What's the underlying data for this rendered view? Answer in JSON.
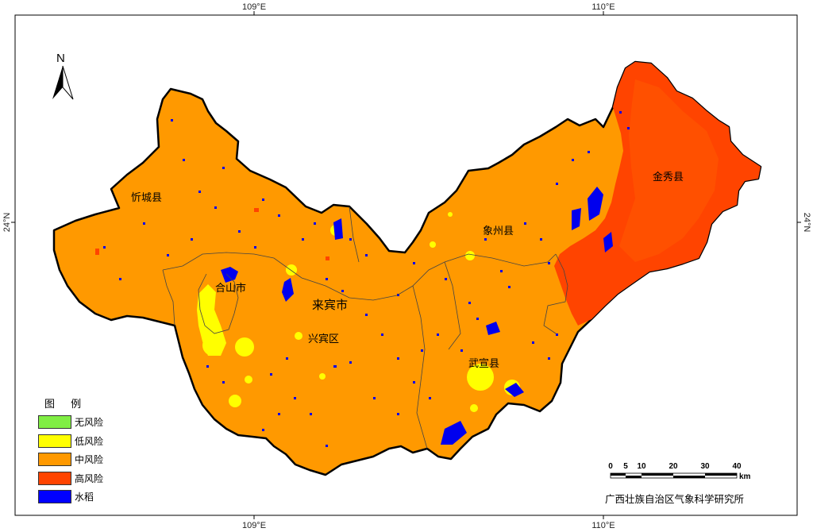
{
  "graticule": {
    "top_left_lon": "109°E",
    "top_right_lon": "110°E",
    "bottom_left_lon": "109°E",
    "bottom_right_lon": "110°E",
    "left_lat": "24°N",
    "right_lat": "24°N"
  },
  "north_arrow": {
    "label": "N",
    "icon": "north-arrow-icon"
  },
  "places": {
    "xincheng": "忻城县",
    "jinxiu": "金秀县",
    "xiangzhou": "象州县",
    "heshan": "合山市",
    "laibin": "来宾市",
    "xingbin": "兴宾区",
    "wuxuan": "武宣县"
  },
  "legend": {
    "title": "图 例",
    "items": [
      {
        "label": "无风险",
        "color": "#80ee44"
      },
      {
        "label": "低风险",
        "color": "#ffff00"
      },
      {
        "label": "中风险",
        "color": "#ff9900"
      },
      {
        "label": "高风险",
        "color": "#ff4400"
      },
      {
        "label": "水稻",
        "color": "#0000ff"
      }
    ]
  },
  "scale_bar": {
    "ticks": [
      "0",
      "5",
      "10",
      "20",
      "30",
      "40"
    ],
    "unit": "km"
  },
  "credit": "广西壮族自治区气象科学研究所"
}
